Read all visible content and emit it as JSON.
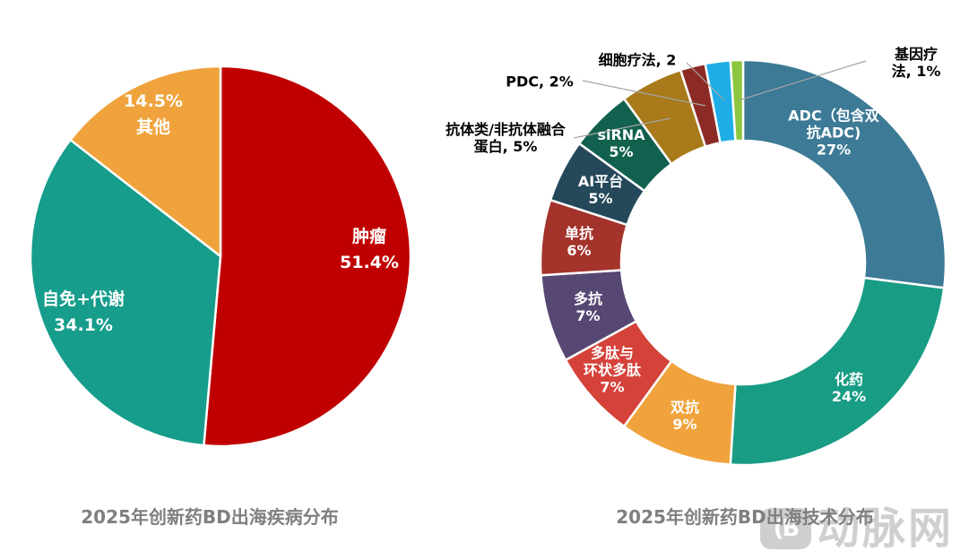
{
  "charts": {
    "left": {
      "title": "2025年创新药BD出海疾病分布",
      "slice_labels": {
        "tumor": "肿瘤\n51.4%",
        "autoimmune": "自免+代谢\n34.1%",
        "other": "14.5%\n其他"
      }
    },
    "right": {
      "title": "2025年创新药BD出海技术分布",
      "slice_labels": {
        "adc": "ADC（包含双\n抗ADC)\n27%",
        "chemical": "化药\n24%",
        "bispecific": "双抗\n9%",
        "peptide": "多肽与\n环状多肽\n7%",
        "multi_antibody": "多抗\n7%",
        "mono_antibody": "单抗\n6%",
        "ai_platform": "AI平台\n5%",
        "sirna": "siRNA\n5%"
      },
      "callout_labels": {
        "antibody_fusion": "抗体类/非抗体融合\n蛋白, 5%",
        "pdc": "PDC, 2%",
        "cell_therapy": "细胞疗法, 2",
        "gene_therapy": "基因疗法, 1%"
      }
    }
  },
  "watermark": {
    "logo_glyph": "(B",
    "text": "动脉网"
  },
  "colors": {
    "title_gray": "#7f7f7f",
    "leader_line": "#a6a6a6",
    "watermark_gray": "#cfcfcf",
    "slice_label_white": "#ffffff",
    "callout_label_black": "#000000"
  },
  "chart_data": [
    {
      "type": "pie",
      "title": "2025年创新药BD出海疾病分布",
      "categories": [
        "肿瘤",
        "自免+代谢",
        "其他"
      ],
      "values": [
        51.4,
        34.1,
        14.5
      ],
      "colors": [
        "#C00000",
        "#169D8B",
        "#F0A33C"
      ],
      "start_angle_deg": 0,
      "direction": "clockwise",
      "legend": "none",
      "labels_on_slices": true
    },
    {
      "type": "donut",
      "title": "2025年创新药BD出海技术分布",
      "categories": [
        "ADC（包含双抗ADC)",
        "化药",
        "双抗",
        "多肽与环状多肽",
        "多抗",
        "单抗",
        "AI平台",
        "siRNA",
        "抗体类/非抗体融合蛋白",
        "PDC",
        "细胞疗法",
        "基因疗法"
      ],
      "values": [
        27,
        24,
        9,
        7,
        7,
        6,
        5,
        5,
        5,
        2,
        2,
        1
      ],
      "colors": [
        "#3C7A96",
        "#199C84",
        "#F0A33C",
        "#D4423A",
        "#574773",
        "#A3332B",
        "#25485A",
        "#12614F",
        "#A87A1A",
        "#8C2B25",
        "#1FADE8",
        "#8CC63F"
      ],
      "start_angle_deg": 0,
      "direction": "clockwise",
      "inner_radius_ratio": 0.6,
      "legend": "none",
      "labels_on_slices": true
    }
  ]
}
